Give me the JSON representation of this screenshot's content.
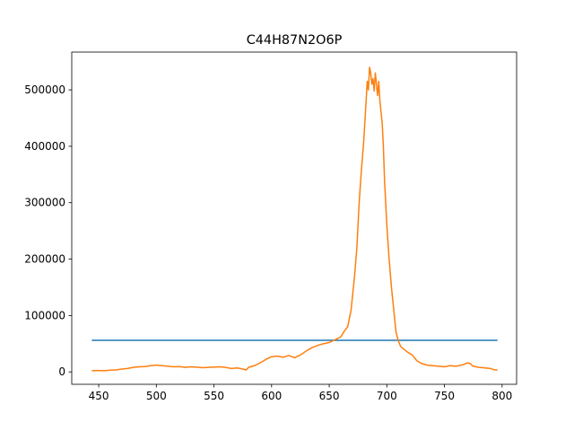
{
  "chart_data": {
    "type": "line",
    "title": "C44H87N2O6P",
    "xlabel": "",
    "ylabel": "",
    "xlim": [
      426.6,
      812.6
    ],
    "ylim": [
      -22000,
      567000
    ],
    "xticks": [
      450,
      500,
      550,
      600,
      650,
      700,
      750,
      800
    ],
    "yticks": [
      0,
      100000,
      200000,
      300000,
      400000,
      500000
    ],
    "grid": false,
    "legend": "none",
    "series": [
      {
        "color": "#1f77b4",
        "x": [
          444,
          796
        ],
        "y": [
          56000,
          56000
        ]
      },
      {
        "color": "#ff7f0e",
        "x": [
          444,
          450,
          455,
          460,
          465,
          470,
          475,
          480,
          485,
          490,
          495,
          500,
          505,
          510,
          515,
          520,
          525,
          530,
          535,
          540,
          545,
          550,
          555,
          560,
          565,
          570,
          575,
          578,
          580,
          585,
          590,
          595,
          600,
          605,
          610,
          615,
          620,
          625,
          630,
          635,
          640,
          645,
          650,
          655,
          660,
          663,
          666,
          669,
          672,
          674,
          676,
          678,
          680,
          682,
          683,
          684,
          685,
          686,
          687,
          688,
          689,
          690,
          691,
          692,
          693,
          694,
          695,
          696,
          697,
          698,
          700,
          702,
          704,
          706,
          708,
          710,
          712,
          715,
          718,
          722,
          726,
          730,
          735,
          740,
          745,
          750,
          755,
          760,
          765,
          770,
          772,
          775,
          780,
          785,
          790,
          793,
          796
        ],
        "y": [
          2000,
          2500,
          2000,
          3000,
          3500,
          5000,
          6000,
          8000,
          9000,
          9500,
          11000,
          12000,
          11000,
          10000,
          9000,
          9500,
          8000,
          9000,
          8500,
          7500,
          8000,
          8500,
          9000,
          8000,
          6000,
          7000,
          5000,
          3500,
          8000,
          11000,
          16000,
          22000,
          27000,
          28000,
          26000,
          29000,
          25000,
          30000,
          37000,
          43000,
          47000,
          50000,
          52000,
          57000,
          62000,
          72000,
          80000,
          110000,
          170000,
          220000,
          300000,
          360000,
          410000,
          480000,
          515000,
          500000,
          540000,
          530000,
          510000,
          520000,
          498000,
          530000,
          510000,
          490000,
          515000,
          480000,
          460000,
          440000,
          400000,
          340000,
          260000,
          200000,
          150000,
          110000,
          70000,
          55000,
          45000,
          40000,
          35000,
          30000,
          20000,
          15000,
          12000,
          11000,
          10000,
          9000,
          11000,
          10000,
          12000,
          16000,
          15000,
          10000,
          8000,
          7000,
          6000,
          4000,
          3000
        ]
      }
    ]
  }
}
